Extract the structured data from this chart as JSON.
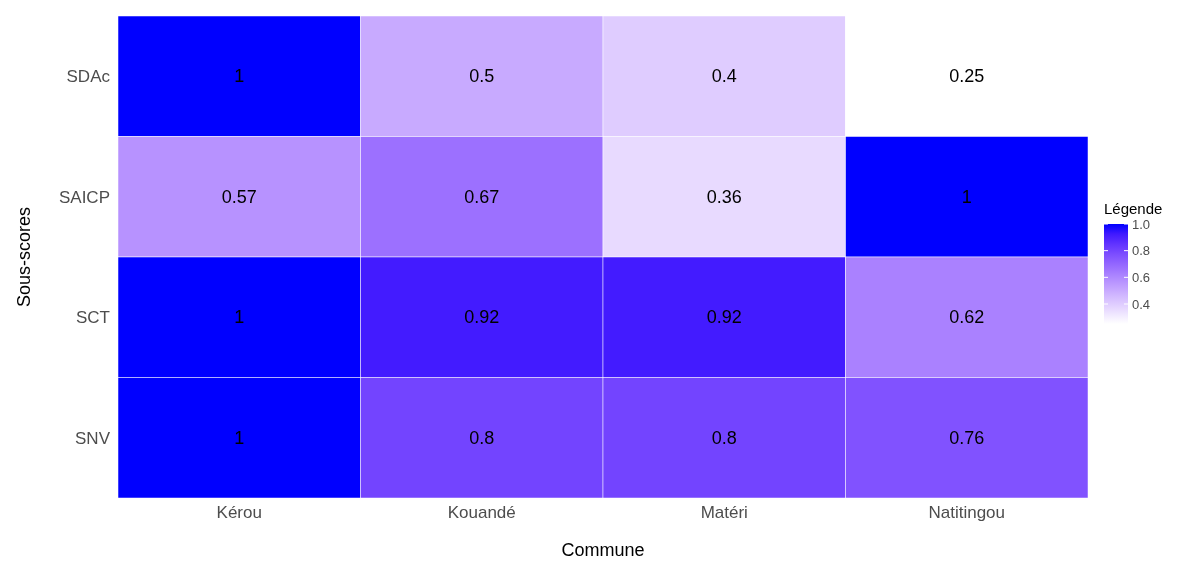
{
  "chart_data": {
    "type": "heatmap",
    "xlabel": "Commune",
    "ylabel": "Sous-scores",
    "legend_title": "Légende",
    "categories": [
      "Kérou",
      "Kouandé",
      "Matéri",
      "Natitingou"
    ],
    "y_categories": [
      "SDAc",
      "SAICP",
      "SCT",
      "SNV"
    ],
    "cells": [
      [
        1,
        0.5,
        0.4,
        0.25
      ],
      [
        0.57,
        0.67,
        0.36,
        1
      ],
      [
        1,
        0.92,
        0.92,
        0.62
      ],
      [
        1,
        0.8,
        0.8,
        0.76
      ]
    ],
    "clim": [
      0.25,
      1
    ],
    "cticks": [
      0.4,
      0.6,
      0.8,
      {
        "value": 1,
        "label": "1.0"
      }
    ],
    "data_labels": true
  }
}
